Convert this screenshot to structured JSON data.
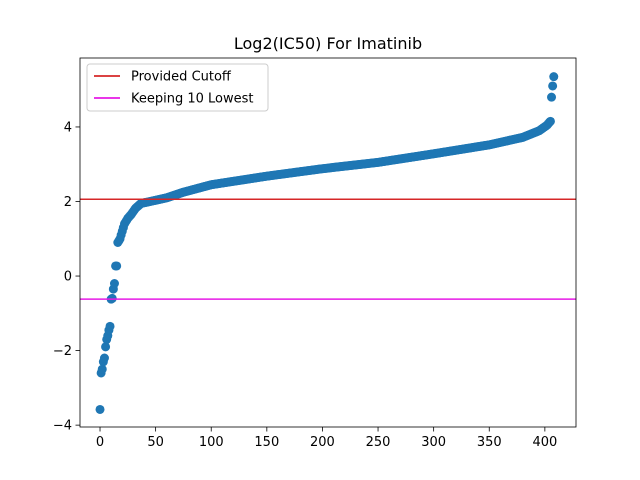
{
  "chart_data": {
    "type": "scatter",
    "title": "Log2(IC50) For Imatinib",
    "xlabel": "",
    "ylabel": "",
    "xlim": [
      -18,
      428
    ],
    "ylim": [
      -4.05,
      5.85
    ],
    "xticks": [
      0,
      50,
      100,
      150,
      200,
      250,
      300,
      350,
      400
    ],
    "yticks": [
      -4,
      -2,
      0,
      2,
      4
    ],
    "grid": false,
    "legend": {
      "position": "top-left",
      "entries": [
        {
          "label": "Provided Cutoff",
          "color": "#d62728"
        },
        {
          "label": "Keeping 10 Lowest",
          "color": "#e619e6"
        }
      ]
    },
    "reference_lines": [
      {
        "name": "Provided Cutoff",
        "orientation": "horizontal",
        "y": 2.06,
        "color": "#d62728"
      },
      {
        "name": "Keeping 10 Lowest",
        "orientation": "horizontal",
        "y": -0.62,
        "color": "#e619e6"
      }
    ],
    "series": [
      {
        "color": "#1f77b4",
        "note_sorted_ascending": true,
        "anchor_points": [
          [
            0,
            -3.58
          ],
          [
            1,
            -2.6
          ],
          [
            2,
            -2.5
          ],
          [
            3,
            -2.3
          ],
          [
            4,
            -2.2
          ],
          [
            5,
            -1.9
          ],
          [
            6,
            -1.7
          ],
          [
            7,
            -1.6
          ],
          [
            8,
            -1.45
          ],
          [
            9,
            -1.35
          ],
          [
            10,
            -0.62
          ],
          [
            11,
            -0.6
          ],
          [
            12,
            -0.35
          ],
          [
            13,
            -0.2
          ],
          [
            14,
            0.27
          ],
          [
            15,
            0.27
          ],
          [
            16,
            0.9
          ],
          [
            18,
            1.0
          ],
          [
            20,
            1.2
          ],
          [
            22,
            1.4
          ],
          [
            25,
            1.55
          ],
          [
            28,
            1.65
          ],
          [
            32,
            1.82
          ],
          [
            37,
            1.95
          ],
          [
            45,
            2.0
          ],
          [
            60,
            2.1
          ],
          [
            75,
            2.25
          ],
          [
            100,
            2.45
          ],
          [
            150,
            2.68
          ],
          [
            200,
            2.88
          ],
          [
            250,
            3.05
          ],
          [
            300,
            3.28
          ],
          [
            350,
            3.52
          ],
          [
            380,
            3.72
          ],
          [
            395,
            3.9
          ],
          [
            402,
            4.05
          ],
          [
            404,
            4.12
          ],
          [
            405,
            4.15
          ],
          [
            406,
            4.8
          ],
          [
            407,
            5.1
          ],
          [
            408,
            5.35
          ]
        ]
      }
    ]
  }
}
